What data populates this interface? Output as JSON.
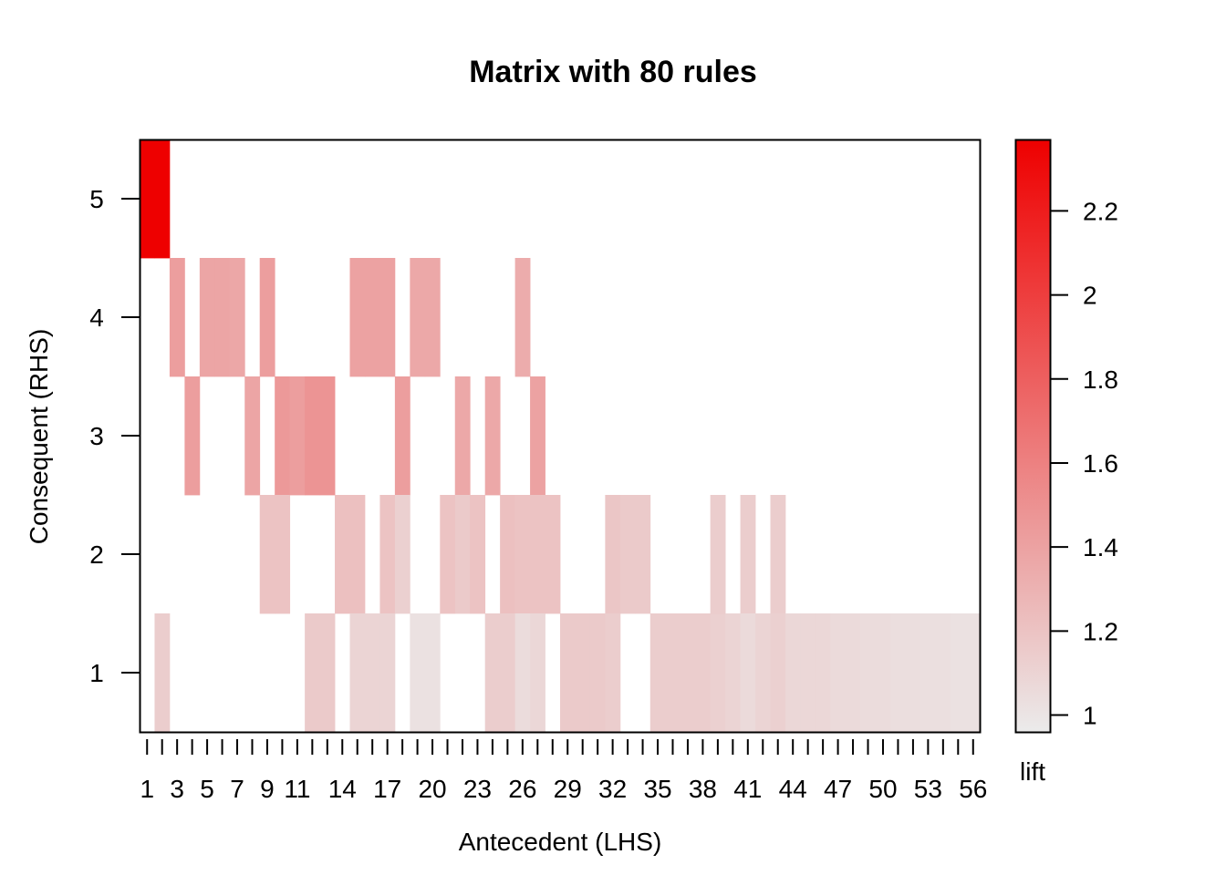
{
  "chart_data": {
    "type": "heatmap",
    "title": "Matrix with 80 rules",
    "xlabel": "Antecedent (LHS)",
    "ylabel": "Consequent (RHS)",
    "x_range": [
      1,
      56
    ],
    "y_range": [
      1,
      5
    ],
    "x_tick_labels": [
      "1",
      "3",
      "5",
      "7",
      "9",
      "11",
      "14",
      "17",
      "20",
      "23",
      "26",
      "29",
      "32",
      "35",
      "38",
      "41",
      "44",
      "47",
      "50",
      "53",
      "56"
    ],
    "y_tick_labels": [
      "1",
      "2",
      "3",
      "4",
      "5"
    ],
    "legend": {
      "title": "lift",
      "min": 0.96,
      "max": 2.37,
      "ticks": [
        "1",
        "1.2",
        "1.4",
        "1.6",
        "1.8",
        "2",
        "2.2"
      ],
      "low_color": "#ebebeb",
      "high_color": "#ee0000"
    },
    "cells": [
      {
        "x": 1,
        "y": 5,
        "lift": 2.37
      },
      {
        "x": 2,
        "y": 5,
        "lift": 2.37
      },
      {
        "x": 2,
        "y": 1,
        "lift": 1.14
      },
      {
        "x": 3,
        "y": 4,
        "lift": 1.42
      },
      {
        "x": 4,
        "y": 3,
        "lift": 1.42
      },
      {
        "x": 5,
        "y": 4,
        "lift": 1.38
      },
      {
        "x": 6,
        "y": 4,
        "lift": 1.38
      },
      {
        "x": 7,
        "y": 4,
        "lift": 1.37
      },
      {
        "x": 8,
        "y": 3,
        "lift": 1.38
      },
      {
        "x": 9,
        "y": 4,
        "lift": 1.42
      },
      {
        "x": 9,
        "y": 2,
        "lift": 1.2
      },
      {
        "x": 10,
        "y": 3,
        "lift": 1.45
      },
      {
        "x": 10,
        "y": 2,
        "lift": 1.2
      },
      {
        "x": 11,
        "y": 3,
        "lift": 1.42
      },
      {
        "x": 12,
        "y": 3,
        "lift": 1.48
      },
      {
        "x": 12,
        "y": 1,
        "lift": 1.16
      },
      {
        "x": 13,
        "y": 3,
        "lift": 1.48
      },
      {
        "x": 13,
        "y": 1,
        "lift": 1.16
      },
      {
        "x": 14,
        "y": 2,
        "lift": 1.22
      },
      {
        "x": 15,
        "y": 4,
        "lift": 1.4
      },
      {
        "x": 15,
        "y": 2,
        "lift": 1.22
      },
      {
        "x": 15,
        "y": 1,
        "lift": 1.1
      },
      {
        "x": 16,
        "y": 4,
        "lift": 1.4
      },
      {
        "x": 16,
        "y": 1,
        "lift": 1.1
      },
      {
        "x": 17,
        "y": 4,
        "lift": 1.4
      },
      {
        "x": 17,
        "y": 2,
        "lift": 1.2
      },
      {
        "x": 17,
        "y": 1,
        "lift": 1.1
      },
      {
        "x": 18,
        "y": 3,
        "lift": 1.42
      },
      {
        "x": 18,
        "y": 2,
        "lift": 1.12
      },
      {
        "x": 19,
        "y": 4,
        "lift": 1.36
      },
      {
        "x": 19,
        "y": 1,
        "lift": 1.02
      },
      {
        "x": 20,
        "y": 4,
        "lift": 1.36
      },
      {
        "x": 20,
        "y": 1,
        "lift": 1.02
      },
      {
        "x": 21,
        "y": 2,
        "lift": 1.2
      },
      {
        "x": 22,
        "y": 3,
        "lift": 1.36
      },
      {
        "x": 22,
        "y": 2,
        "lift": 1.16
      },
      {
        "x": 23,
        "y": 2,
        "lift": 1.2
      },
      {
        "x": 24,
        "y": 3,
        "lift": 1.36
      },
      {
        "x": 24,
        "y": 1,
        "lift": 1.14
      },
      {
        "x": 25,
        "y": 2,
        "lift": 1.22
      },
      {
        "x": 25,
        "y": 1,
        "lift": 1.14
      },
      {
        "x": 26,
        "y": 4,
        "lift": 1.34
      },
      {
        "x": 26,
        "y": 2,
        "lift": 1.2
      },
      {
        "x": 26,
        "y": 1,
        "lift": 1.05
      },
      {
        "x": 27,
        "y": 3,
        "lift": 1.4
      },
      {
        "x": 27,
        "y": 2,
        "lift": 1.2
      },
      {
        "x": 27,
        "y": 1,
        "lift": 1.08
      },
      {
        "x": 28,
        "y": 2,
        "lift": 1.2
      },
      {
        "x": 29,
        "y": 1,
        "lift": 1.16
      },
      {
        "x": 30,
        "y": 1,
        "lift": 1.16
      },
      {
        "x": 31,
        "y": 1,
        "lift": 1.16
      },
      {
        "x": 32,
        "y": 2,
        "lift": 1.18
      },
      {
        "x": 32,
        "y": 1,
        "lift": 1.14
      },
      {
        "x": 33,
        "y": 2,
        "lift": 1.16
      },
      {
        "x": 34,
        "y": 2,
        "lift": 1.16
      },
      {
        "x": 35,
        "y": 1,
        "lift": 1.14
      },
      {
        "x": 36,
        "y": 1,
        "lift": 1.14
      },
      {
        "x": 37,
        "y": 1,
        "lift": 1.14
      },
      {
        "x": 38,
        "y": 1,
        "lift": 1.14
      },
      {
        "x": 39,
        "y": 1,
        "lift": 1.12
      },
      {
        "x": 39,
        "y": 2,
        "lift": 1.14
      },
      {
        "x": 40,
        "y": 1,
        "lift": 1.1
      },
      {
        "x": 41,
        "y": 2,
        "lift": 1.14
      },
      {
        "x": 41,
        "y": 1,
        "lift": 1.06
      },
      {
        "x": 42,
        "y": 1,
        "lift": 1.1
      },
      {
        "x": 43,
        "y": 2,
        "lift": 1.14
      },
      {
        "x": 43,
        "y": 1,
        "lift": 1.12
      },
      {
        "x": 44,
        "y": 1,
        "lift": 1.08
      },
      {
        "x": 45,
        "y": 1,
        "lift": 1.08
      },
      {
        "x": 46,
        "y": 1,
        "lift": 1.08
      },
      {
        "x": 47,
        "y": 1,
        "lift": 1.06
      },
      {
        "x": 48,
        "y": 1,
        "lift": 1.06
      },
      {
        "x": 49,
        "y": 1,
        "lift": 1.05
      },
      {
        "x": 50,
        "y": 1,
        "lift": 1.05
      },
      {
        "x": 51,
        "y": 1,
        "lift": 1.04
      },
      {
        "x": 52,
        "y": 1,
        "lift": 1.04
      },
      {
        "x": 53,
        "y": 1,
        "lift": 1.03
      },
      {
        "x": 54,
        "y": 1,
        "lift": 1.03
      },
      {
        "x": 55,
        "y": 1,
        "lift": 1.02
      },
      {
        "x": 56,
        "y": 1,
        "lift": 1.02
      }
    ]
  }
}
